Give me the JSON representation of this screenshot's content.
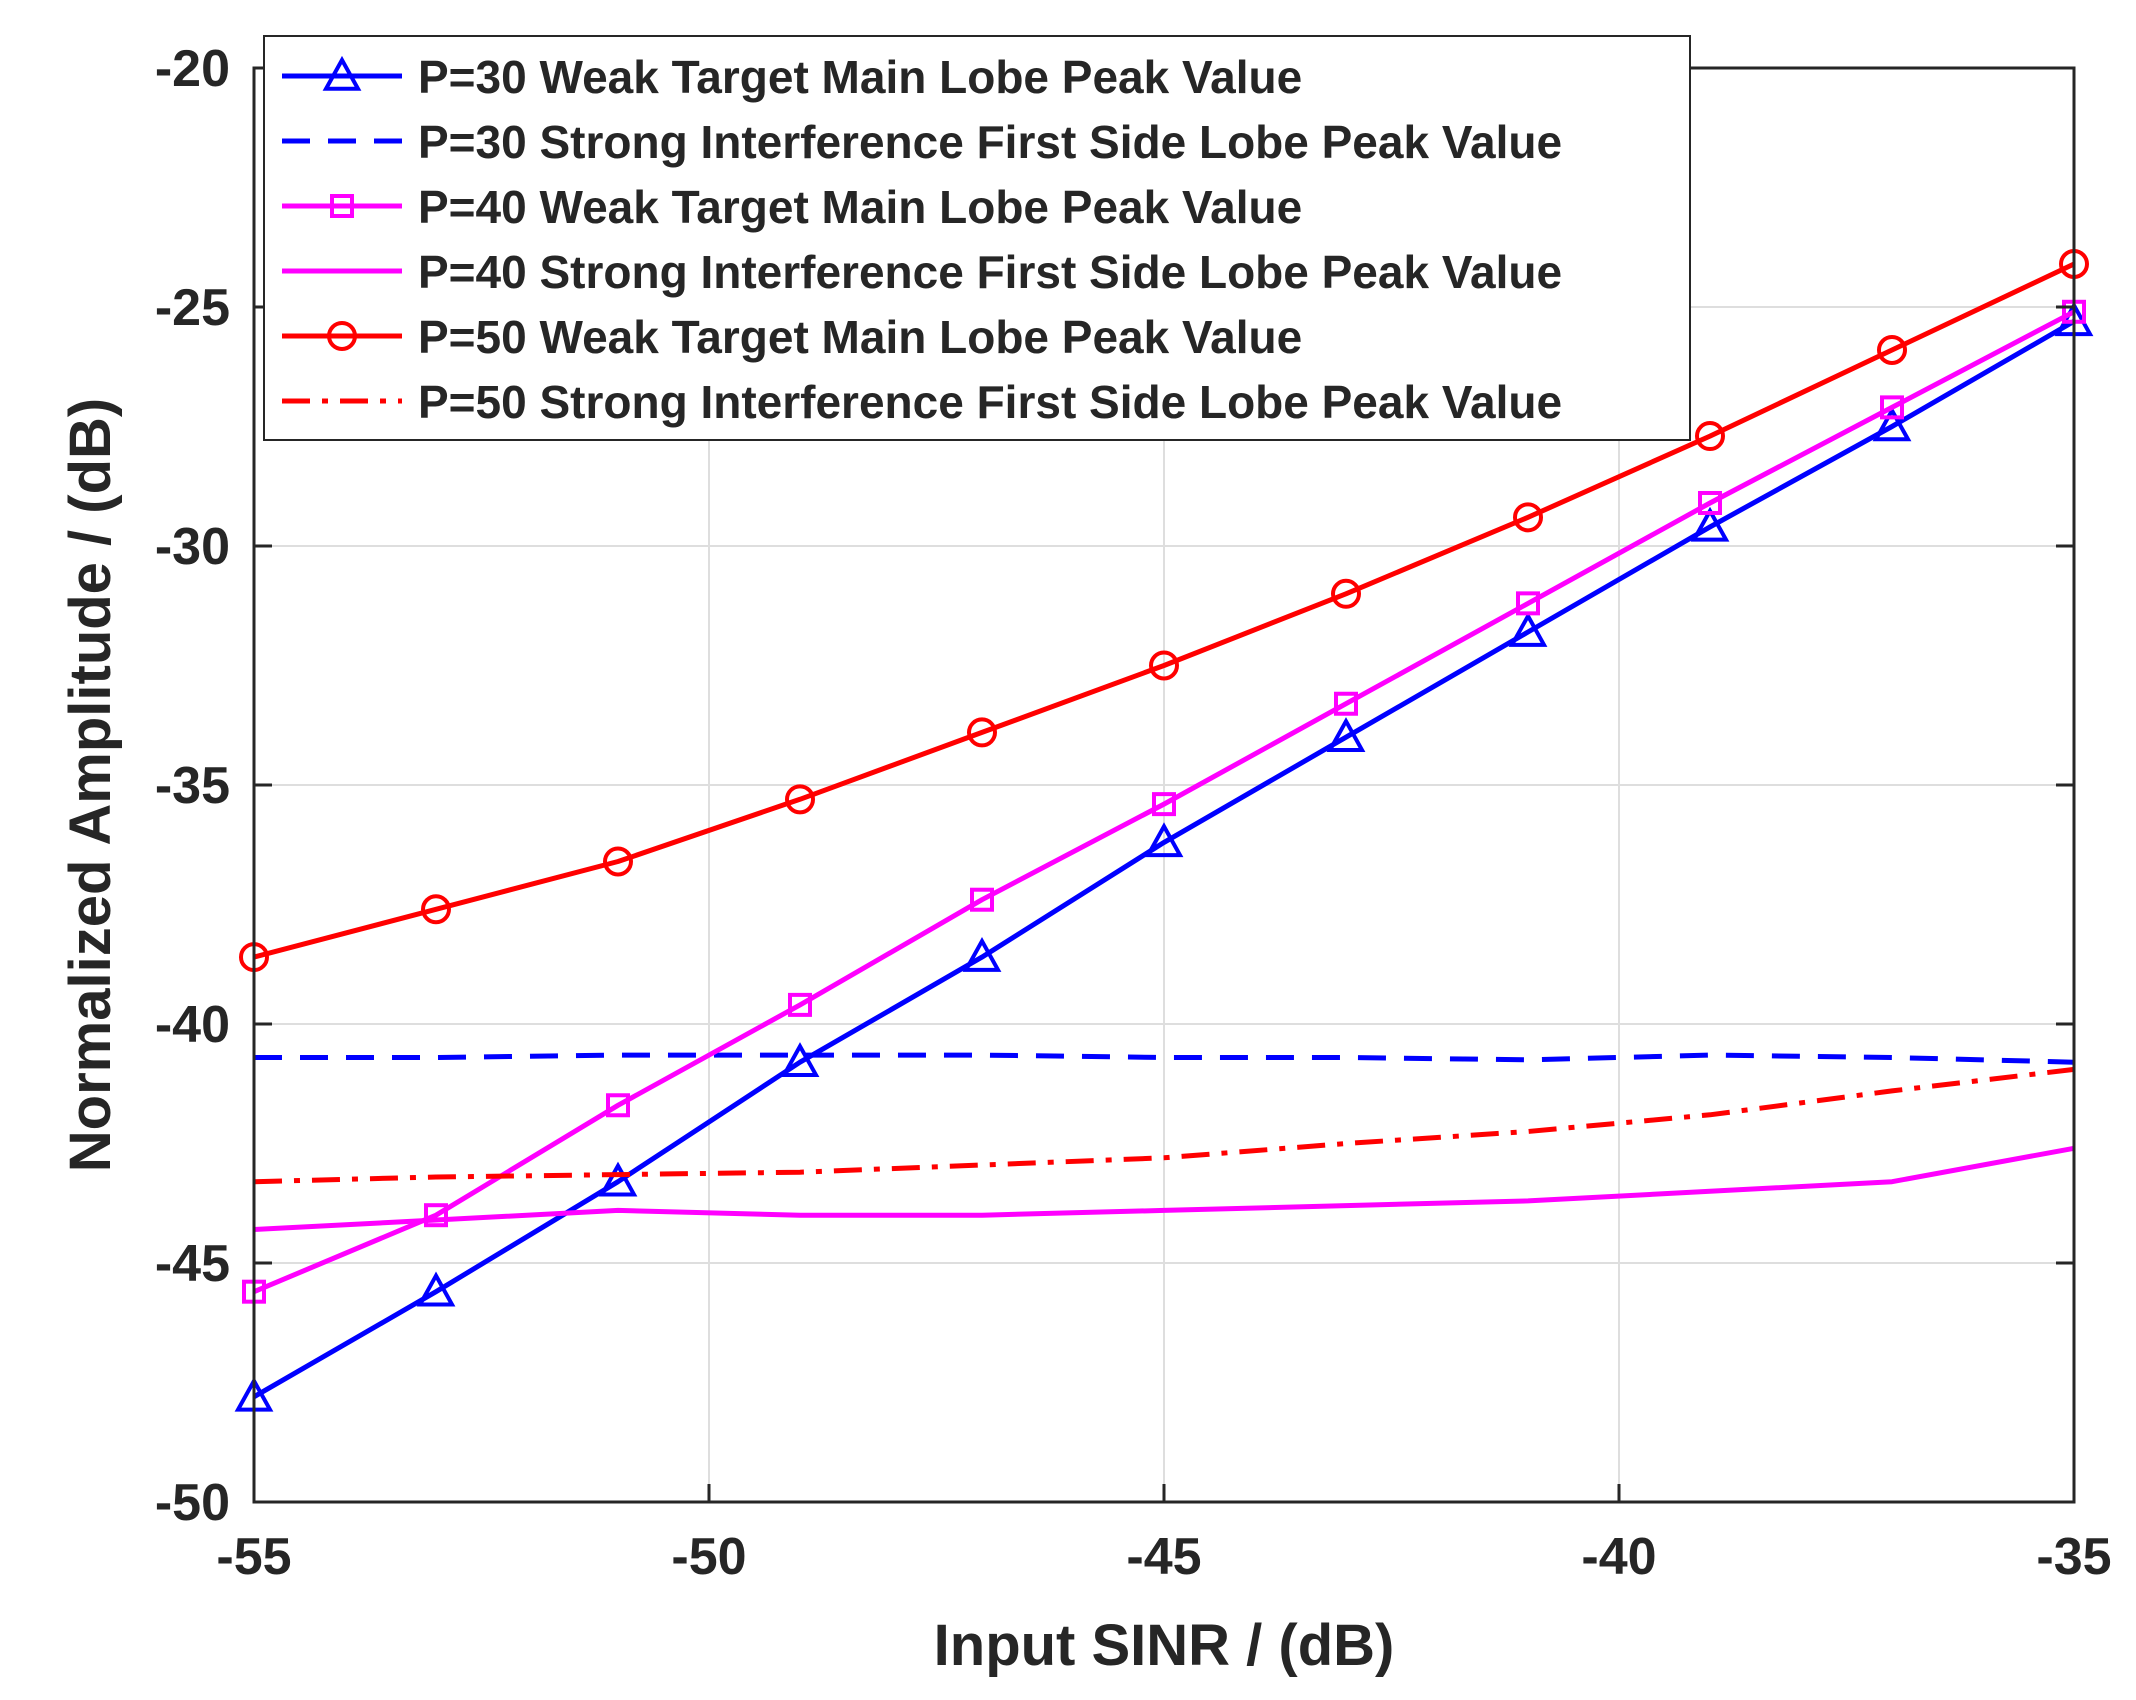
{
  "chart_data": {
    "type": "line",
    "title": "",
    "xlabel": "Input SINR / (dB)",
    "ylabel": "Normalized Amplitude / (dB)",
    "xlim": [
      -55,
      -35
    ],
    "ylim": [
      -50,
      -20
    ],
    "xticks": [
      -55,
      -50,
      -45,
      -40,
      -35
    ],
    "yticks": [
      -50,
      -45,
      -40,
      -35,
      -30,
      -25,
      -20
    ],
    "x_tick_labels": [
      "-55",
      "-50",
      "-45",
      "-40",
      "-35"
    ],
    "y_tick_labels": [
      "-50",
      "-45",
      "-40",
      "-35",
      "-30",
      "-25",
      "-20"
    ],
    "grid": true,
    "legend_position": "top-left",
    "x": [
      -55,
      -53,
      -51,
      -49,
      -47,
      -45,
      -43,
      -41,
      -39,
      -37,
      -35
    ],
    "series": [
      {
        "name": "P=30 Weak Target Main Lobe Peak Value",
        "color": "#0000ff",
        "line_style": "solid",
        "marker": "triangle",
        "values": [
          -47.8,
          -45.6,
          -43.3,
          -40.8,
          -38.6,
          -36.2,
          -34.0,
          -31.8,
          -29.6,
          -27.5,
          -25.3
        ]
      },
      {
        "name": "P=30 Strong Interference First Side Lobe Peak Value",
        "color": "#0000ff",
        "line_style": "dashed",
        "marker": "none",
        "values": [
          -40.7,
          -40.7,
          -40.65,
          -40.65,
          -40.65,
          -40.7,
          -40.7,
          -40.75,
          -40.65,
          -40.7,
          -40.8
        ]
      },
      {
        "name": "P=40 Weak Target Main Lobe Peak Value",
        "color": "#ff00ff",
        "line_style": "solid",
        "marker": "square",
        "values": [
          -45.6,
          -44.0,
          -41.7,
          -39.6,
          -37.4,
          -35.4,
          -33.3,
          -31.2,
          -29.1,
          -27.1,
          -25.1
        ]
      },
      {
        "name": "P=40 Strong Interference First Side Lobe Peak Value",
        "color": "#ff00ff",
        "line_style": "solid",
        "marker": "none",
        "values": [
          -44.3,
          -44.1,
          -43.9,
          -44.0,
          -44.0,
          -43.9,
          -43.8,
          -43.7,
          -43.5,
          -43.3,
          -42.6
        ]
      },
      {
        "name": "P=50 Weak Target Main Lobe Peak Value",
        "color": "#ff0000",
        "line_style": "solid",
        "marker": "circle",
        "values": [
          -38.6,
          -37.6,
          -36.6,
          -35.3,
          -33.9,
          -32.5,
          -31.0,
          -29.4,
          -27.7,
          -25.9,
          -24.1
        ]
      },
      {
        "name": "P=50 Strong Interference First Side Lobe Peak Value",
        "color": "#ff0000",
        "line_style": "dashdot",
        "marker": "none",
        "values": [
          -43.3,
          -43.2,
          -43.15,
          -43.1,
          -42.95,
          -42.8,
          -42.5,
          -42.25,
          -41.9,
          -41.4,
          -40.95
        ]
      }
    ]
  }
}
